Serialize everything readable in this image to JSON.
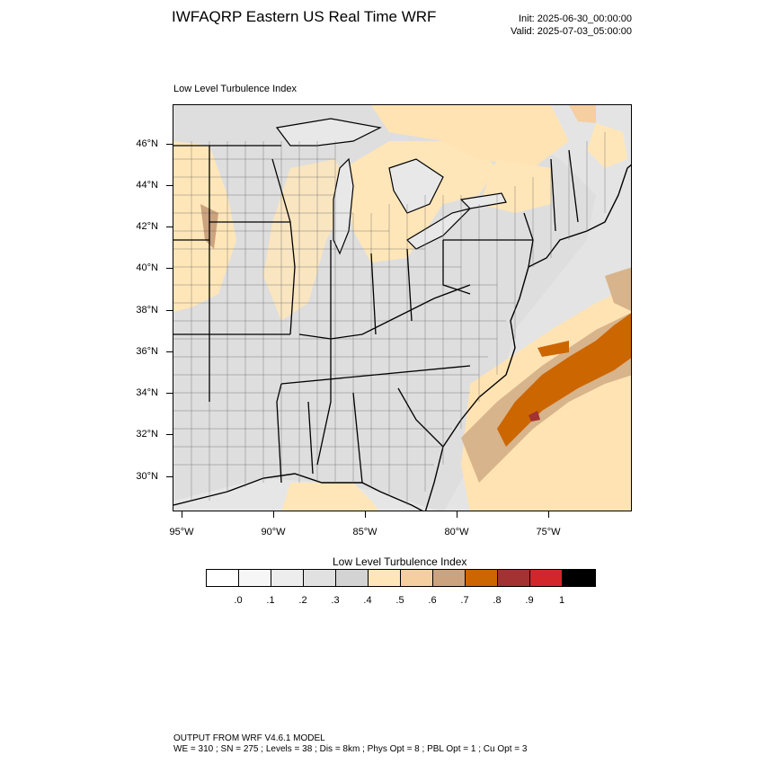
{
  "header": {
    "title": "IWFAQRP Eastern US Real Time WRF",
    "init": "Init: 2025-06-30_00:00:00",
    "valid": "Valid: 2025-07-03_05:00:00"
  },
  "panel": {
    "title": "Low Level Turbulence Index"
  },
  "map": {
    "lat_labels": [
      "46°N",
      "44°N",
      "42°N",
      "40°N",
      "38°N",
      "36°N",
      "34°N",
      "32°N",
      "30°N"
    ],
    "lon_labels": [
      "95°W",
      "90°W",
      "85°W",
      "80°W",
      "75°W"
    ],
    "colors": {
      "land": "#dcdcdc",
      "water": "#e8e8e8",
      "low": "#f5f5f5",
      "mid": "#ffe3b3",
      "tan": "#d7b48b",
      "orange": "#cc6600",
      "red": "#a33232"
    }
  },
  "colorbar": {
    "title": "Low Level Turbulence Index",
    "labels": [
      ".0",
      ".1",
      ".2",
      ".3",
      ".4",
      ".5",
      ".6",
      ".7",
      ".8",
      ".9",
      "1"
    ],
    "colors": [
      "#ffffff",
      "#f6f6f6",
      "#ededed",
      "#e1e1e1",
      "#d3d3d3",
      "#ffe6b8",
      "#f5cfa0",
      "#cba37e",
      "#cc6600",
      "#a33232",
      "#d3262a",
      "#000000"
    ]
  },
  "footer": {
    "line1": "OUTPUT FROM WRF V4.6.1 MODEL",
    "line2": "WE = 310 ; SN = 275 ; Levels = 38 ; Dis = 8km ; Phys Opt = 8 ; PBL Opt = 1 ; Cu Opt = 3"
  }
}
